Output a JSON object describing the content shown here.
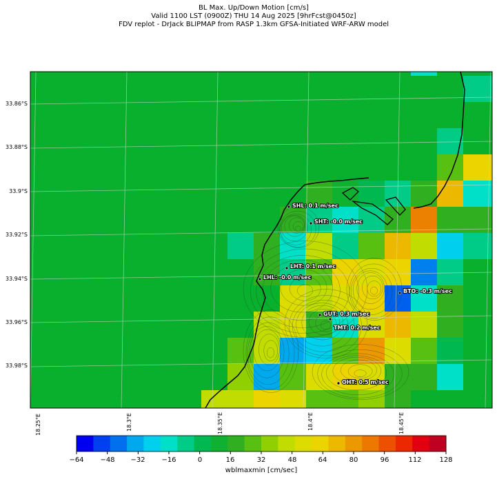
{
  "header": {
    "line1": "BL Max. Up/Down Motion [cm/s]",
    "line2": "Valid 1100 LST (0900Z) THU 14 Aug 2025 [9hrFcst@0450z]",
    "line3": "FDV replot - DrJack BLIPMAP from RASP 1.3km GFSA-Initiated WRF-ARW model"
  },
  "axes": {
    "lat_ticks": [
      "33.86°S",
      "33.88°S",
      "33.9°S",
      "33.92°S",
      "33.94°S",
      "33.96°S",
      "33.98°S"
    ],
    "lon_ticks": [
      "18.25°E",
      "18.3°E",
      "18.35°E",
      "18.4°E",
      "18.45°E"
    ]
  },
  "stations": [
    {
      "label": "SHL: 0.1 m/sec"
    },
    {
      "label": "SHT: -0.0 m/sec"
    },
    {
      "label": "LHT: 0.1 m/sec"
    },
    {
      "label": "LHL: -0.0 m/sec"
    },
    {
      "label": "BTO: -0.3 m/sec"
    },
    {
      "label": "GUT: 0.3 m/sec"
    },
    {
      "label": "TMT: 0.2 m/sec"
    },
    {
      "label": "OHT: 0.5 m/sec"
    }
  ],
  "colorbar": {
    "label": "wblmaxmin [cm/sec]",
    "ticks": [
      "−64",
      "−48",
      "−32",
      "−16",
      "0",
      "16",
      "32",
      "48",
      "64",
      "80",
      "96",
      "112",
      "128"
    ],
    "colors": [
      "#0000ee",
      "#0040ee",
      "#0070ee",
      "#00a8ee",
      "#00d0ee",
      "#00e0c8",
      "#00cc88",
      "#00b850",
      "#10b030",
      "#30b020",
      "#58c010",
      "#90d000",
      "#c0dc00",
      "#dcdc00",
      "#ecd400",
      "#ecb800",
      "#ec9800",
      "#ec7800",
      "#ec5000",
      "#ec2800",
      "#e00010",
      "#c00020"
    ]
  },
  "colors": {
    "ocean_background": "#08b02e",
    "land_uplift": "#dcdc00",
    "strong_down": "#0080ee",
    "strong_up": "#ec8000"
  }
}
